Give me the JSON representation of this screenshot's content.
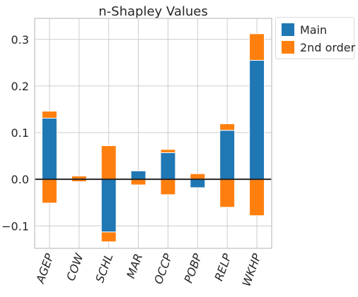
{
  "chart_data": {
    "type": "bar",
    "stacked": true,
    "title": "n-Shapley Values",
    "xlabel": "",
    "ylabel": "",
    "categories": [
      "AGEP",
      "COW",
      "SCHL",
      "MAR",
      "OCCP",
      "POBP",
      "RELP",
      "WKHP"
    ],
    "ylim": [
      -0.148,
      0.345
    ],
    "yticks": [
      -0.1,
      0.0,
      0.1,
      0.2,
      0.3
    ],
    "ytick_labels": [
      "−0.1",
      "0.0",
      "0.1",
      "0.2",
      "0.3"
    ],
    "series": [
      {
        "name": "Main",
        "color": "#1f77b4",
        "values": [
          0.131,
          0.0,
          -0.113,
          0.018,
          0.057,
          -0.018,
          0.105,
          0.255
        ]
      },
      {
        "name": "2nd order",
        "color": "#ff7f0e",
        "positive": [
          0.015,
          0.007,
          0.072,
          0.0,
          0.007,
          0.012,
          0.014,
          0.057
        ],
        "negative": [
          -0.051,
          -0.005,
          -0.021,
          -0.012,
          -0.033,
          0.0,
          -0.06,
          -0.078
        ]
      }
    ],
    "grid": true,
    "legend_position": "outside-top-right"
  }
}
